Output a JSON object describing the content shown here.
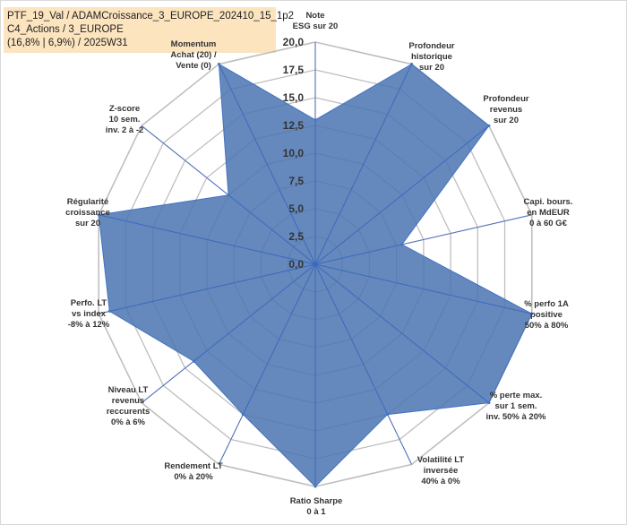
{
  "header": {
    "line1": "PTF_19_Val / ADAMCroissance_3_EUROPE_202410_15_1p2",
    "line2": "C4_Actions / 3_EUROPE",
    "line3": "(16,8% | 6,9%) / 2025W31"
  },
  "colors": {
    "fill": "#4a74b0",
    "stroke": "#4472c4",
    "grid": "#bfbfbf",
    "label_highlight": "#fce4bf"
  },
  "chart_data": {
    "type": "radar",
    "range": [
      0,
      20
    ],
    "grid": true,
    "tick_labels": [
      "0,0",
      "2,5",
      "5,0",
      "7,5",
      "10,0",
      "12,5",
      "15,0",
      "17,5",
      "20,0"
    ],
    "axes": [
      {
        "label": [
          "Note",
          "ESG sur 20"
        ],
        "value": 13
      },
      {
        "label": [
          "Profondeur",
          "historique",
          "sur 20"
        ],
        "value": 20
      },
      {
        "label": [
          "Profondeur",
          "revenus",
          "sur 20"
        ],
        "value": 20
      },
      {
        "label": [
          "Capi. bours.",
          "en MdEUR",
          "0 à 60 G€"
        ],
        "value": 8
      },
      {
        "label": [
          "% perfo 1A",
          "positive",
          "50% à 80%"
        ],
        "value": 20
      },
      {
        "label": [
          "% perte max.",
          "sur 1 sem.",
          "inv. 50% à 20%"
        ],
        "value": 20
      },
      {
        "label": [
          "Volatilité LT",
          "inversée",
          "40% à 0%"
        ],
        "value": 15
      },
      {
        "label": [
          "Ratio Sharpe",
          "0 à 1"
        ],
        "value": 20
      },
      {
        "label": [
          "Rendement LT",
          "0% à 20%"
        ],
        "value": 15
      },
      {
        "label": [
          "Niveau LT",
          "revenus",
          "reccurents",
          "0% à 6%"
        ],
        "value": 14
      },
      {
        "label": [
          "Perfo. LT",
          "vs index",
          "-8% à 12%"
        ],
        "value": 19
      },
      {
        "label": [
          "Régularité",
          "croissance",
          "sur 20"
        ],
        "value": 20
      },
      {
        "label": [
          "Z-score",
          "10 sem.",
          "inv. 2 à -2"
        ],
        "value": 10
      },
      {
        "label": [
          "Momentum",
          "Achat (20) /",
          "Vente (0)"
        ],
        "value": 20
      }
    ]
  }
}
